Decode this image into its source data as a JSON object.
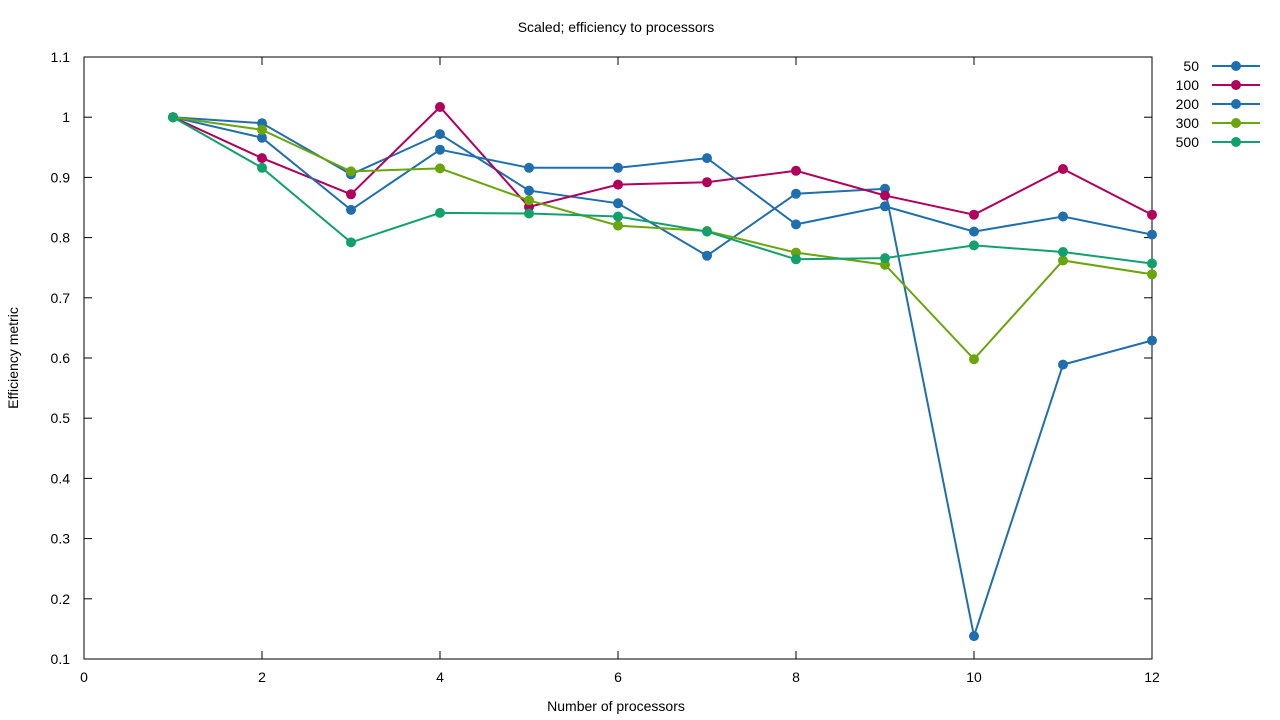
{
  "chart_data": {
    "type": "line",
    "title": "Scaled; efficiency to processors",
    "xlabel": "Number of processors",
    "ylabel": "Efficiency metric",
    "xlim": [
      0,
      12
    ],
    "ylim": [
      0.1,
      1.1
    ],
    "xticks": [
      0,
      2,
      4,
      6,
      8,
      10,
      12
    ],
    "yticks": [
      0.1,
      0.2,
      0.3,
      0.4,
      0.5,
      0.6,
      0.7,
      0.8,
      0.9,
      1,
      1.1
    ],
    "grid": false,
    "legend_position": "top-right-outside",
    "series": [
      {
        "name": "50",
        "color": "#1f6fae",
        "x": [
          1,
          2,
          3,
          4,
          5,
          6,
          7,
          8,
          9,
          10,
          11,
          12
        ],
        "y": [
          1.0,
          0.99,
          0.905,
          0.972,
          0.878,
          0.857,
          0.77,
          0.873,
          0.881,
          0.138,
          0.589,
          0.629
        ]
      },
      {
        "name": "100",
        "color": "#b0005c",
        "x": [
          1,
          2,
          3,
          4,
          5,
          6,
          7,
          8,
          9,
          10,
          11,
          12
        ],
        "y": [
          1.0,
          0.932,
          0.872,
          1.017,
          0.851,
          0.888,
          0.892,
          0.911,
          0.87,
          0.838,
          0.914,
          0.838
        ]
      },
      {
        "name": "200",
        "color": "#1f6fae",
        "x": [
          1,
          2,
          3,
          4,
          5,
          6,
          7,
          8,
          9,
          10,
          11,
          12
        ],
        "y": [
          1.0,
          0.966,
          0.846,
          0.946,
          0.916,
          0.916,
          0.932,
          0.822,
          0.852,
          0.81,
          0.835,
          0.805
        ]
      },
      {
        "name": "300",
        "color": "#6aa50c",
        "x": [
          1,
          2,
          3,
          4,
          5,
          6,
          7,
          8,
          9,
          10,
          11,
          12
        ],
        "y": [
          1.0,
          0.979,
          0.91,
          0.915,
          0.862,
          0.82,
          0.811,
          0.775,
          0.755,
          0.598,
          0.762,
          0.739
        ]
      },
      {
        "name": "500",
        "color": "#12a06c",
        "x": [
          1,
          2,
          3,
          4,
          5,
          6,
          7,
          8,
          9,
          10,
          11,
          12
        ],
        "y": [
          1.0,
          0.916,
          0.792,
          0.841,
          0.84,
          0.835,
          0.81,
          0.764,
          0.766,
          0.787,
          0.776,
          0.757
        ]
      }
    ]
  }
}
